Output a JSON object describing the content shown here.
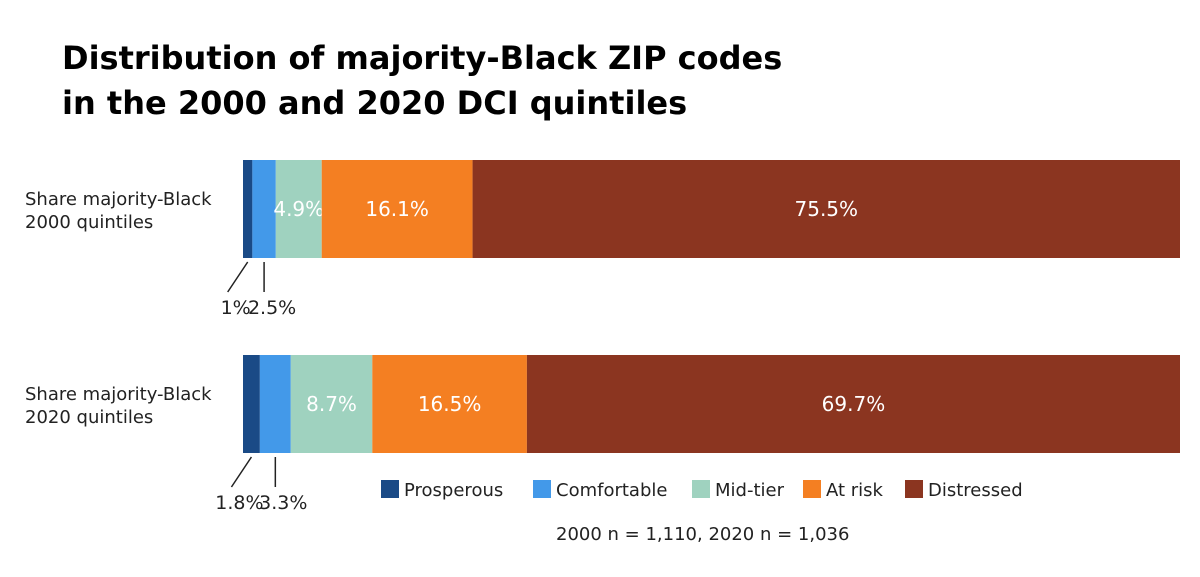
{
  "chart_data": {
    "type": "bar",
    "orientation": "horizontal",
    "stacked": true,
    "title_line1": "Distribution of majority-Black ZIP codes",
    "title_line2": "in the 2000 and 2020 DCI quintiles",
    "categories": [
      [
        "Share majority-Black",
        "2000 quintiles"
      ],
      [
        "Share majority-Black",
        "2020 quintiles"
      ]
    ],
    "series": [
      {
        "name": "Prosperous",
        "color": "#1a4a86",
        "values": [
          1.0,
          1.8
        ],
        "labels": [
          "1%",
          "1.8%"
        ]
      },
      {
        "name": "Comfortable",
        "color": "#4399e9",
        "values": [
          2.5,
          3.3
        ],
        "labels": [
          "2.5%",
          "3.3%"
        ]
      },
      {
        "name": "Mid-tier",
        "color": "#9fd2bf",
        "values": [
          4.9,
          8.7
        ],
        "labels": [
          "4.9%",
          "8.7%"
        ]
      },
      {
        "name": "At risk",
        "color": "#f47f22",
        "values": [
          16.1,
          16.5
        ],
        "labels": [
          "16.1%",
          "16.5%"
        ]
      },
      {
        "name": "Distressed",
        "color": "#8b3520",
        "values": [
          75.5,
          69.7
        ],
        "labels": [
          "75.5%",
          "69.7%"
        ]
      }
    ],
    "xlim": [
      0,
      100
    ],
    "grid": false,
    "legend_position": "bottom",
    "note": "2000 n = 1,110, 2020 n = 1,036"
  }
}
